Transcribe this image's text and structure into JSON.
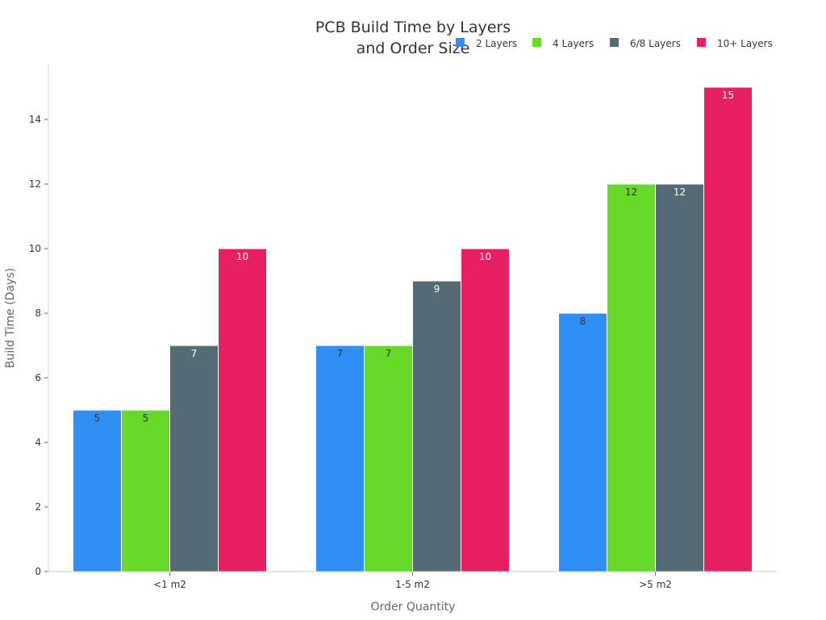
{
  "chart_data": {
    "type": "bar",
    "title_lines": [
      "PCB Build Time by Layers",
      "and Order Size"
    ],
    "xlabel": "Order Quantity",
    "ylabel": "Build Time (Days)",
    "categories": [
      "<1 m2",
      "1-5 m2",
      ">5 m2"
    ],
    "ylim": [
      0,
      15.7
    ],
    "yticks": [
      0,
      2,
      4,
      6,
      8,
      10,
      12,
      14
    ],
    "legend_position": "top-right",
    "series": [
      {
        "name": "2 Layers",
        "color": "#2f8ff6",
        "label_color": "#333333",
        "values": [
          5,
          7,
          8
        ]
      },
      {
        "name": "4 Layers",
        "color": "#66d929",
        "label_color": "#333333",
        "values": [
          5,
          7,
          12
        ]
      },
      {
        "name": "6/8 Layers",
        "color": "#546b75",
        "label_color": "#ffffff",
        "values": [
          7,
          9,
          12
        ]
      },
      {
        "name": "10+ Layers",
        "color": "#e81f63",
        "label_color": "#ffffff",
        "values": [
          10,
          10,
          15
        ]
      }
    ]
  }
}
